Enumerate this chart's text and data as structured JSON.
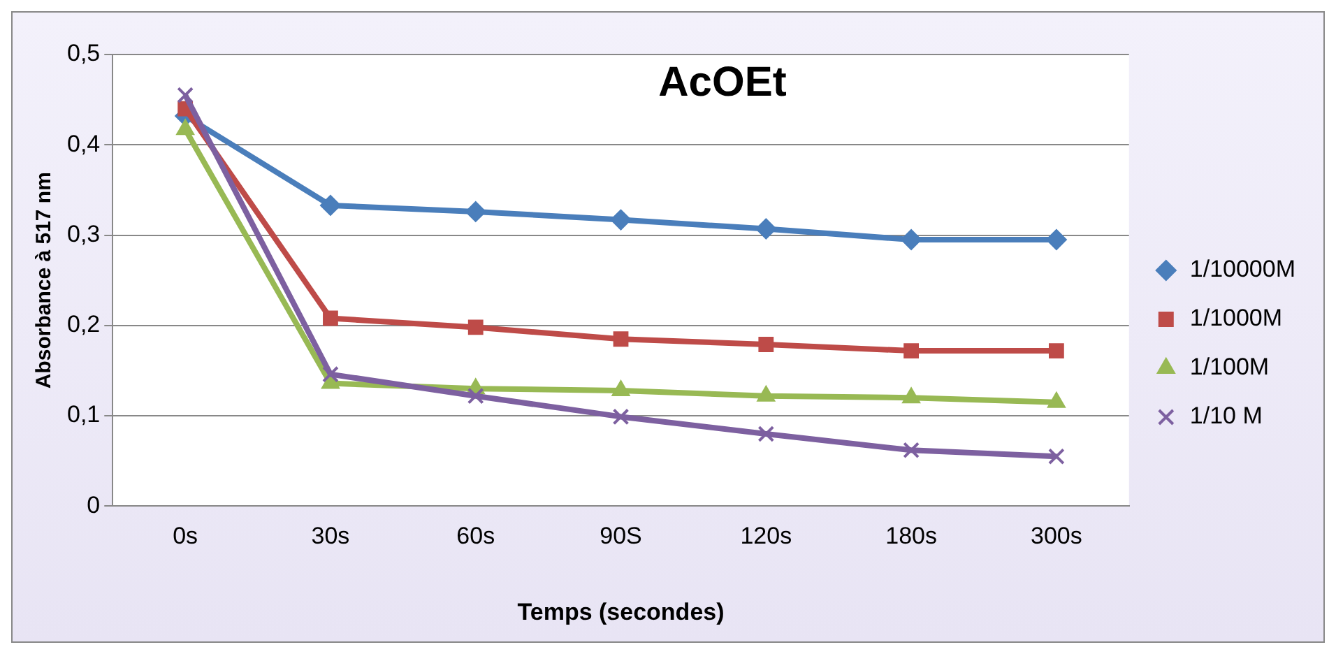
{
  "chart_data": {
    "type": "line",
    "title": "AcOEt",
    "xlabel": "Temps (secondes)",
    "ylabel": "Absorbance à 517 nm",
    "categories": [
      "0s",
      "30s",
      "60s",
      "90S",
      "120s",
      "180s",
      "300s"
    ],
    "series": [
      {
        "name": "1/10000M",
        "color": "#4a7ebb",
        "marker": "diamond",
        "values": [
          0.432,
          0.333,
          0.326,
          0.317,
          0.307,
          0.295,
          0.295
        ]
      },
      {
        "name": "1/1000M",
        "color": "#be4b48",
        "marker": "square",
        "values": [
          0.44,
          0.208,
          0.198,
          0.185,
          0.179,
          0.172,
          0.172
        ]
      },
      {
        "name": "1/100M",
        "color": "#98b954",
        "marker": "triangle",
        "values": [
          0.417,
          0.136,
          0.13,
          0.128,
          0.122,
          0.12,
          0.115
        ]
      },
      {
        "name": "1/10 M",
        "color": "#7d60a0",
        "marker": "cross",
        "values": [
          0.455,
          0.146,
          0.122,
          0.099,
          0.08,
          0.062,
          0.055
        ]
      }
    ],
    "ylim": [
      0,
      0.5
    ],
    "yticks": [
      0,
      {
        "value": 0.1,
        "label": "0,1"
      },
      {
        "value": 0.2,
        "label": "0,2"
      },
      {
        "value": 0.3,
        "label": "0,3"
      },
      {
        "value": 0.4,
        "label": "0,4"
      },
      {
        "value": 0.5,
        "label": "0,5"
      }
    ],
    "grid": "y",
    "legend": "right",
    "line_style": "solid"
  }
}
